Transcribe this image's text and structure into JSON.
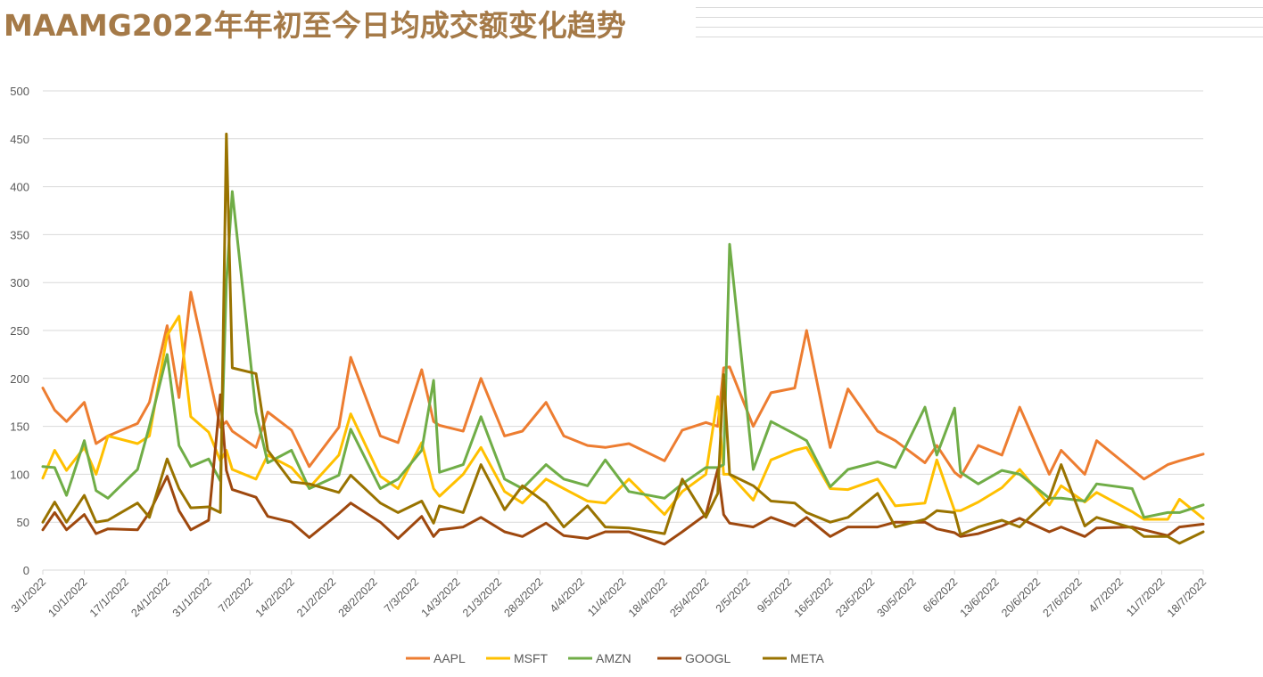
{
  "chart_data": {
    "type": "line",
    "title": "MAAMG2022年年初至今日均成交额变化趋势",
    "xlabel": "",
    "ylabel": "",
    "ylim": [
      0,
      500
    ],
    "yticks": [
      "0",
      "50",
      "100",
      "150",
      "200",
      "250",
      "300",
      "350",
      "400",
      "450",
      "500"
    ],
    "xlim": [
      "2022-01-03",
      "2022-07-18"
    ],
    "xtick_labels": [
      "3/1/2022",
      "10/1/2022",
      "17/1/2022",
      "24/1/2022",
      "31/1/2022",
      "7/2/2022",
      "14/2/2022",
      "21/2/2022",
      "28/2/2022",
      "7/3/2022",
      "14/3/2022",
      "21/3/2022",
      "28/3/2022",
      "4/4/2022",
      "11/4/2022",
      "18/4/2022",
      "25/4/2022",
      "2/5/2022",
      "9/5/2022",
      "16/5/2022",
      "23/5/2022",
      "30/5/2022",
      "6/6/2022",
      "13/6/2022",
      "20/6/2022",
      "27/6/2022",
      "4/7/2022",
      "11/7/2022",
      "18/7/2022"
    ],
    "grid": true,
    "legend_position": "bottom",
    "x": [
      "2022-01-03",
      "2022-01-05",
      "2022-01-07",
      "2022-01-10",
      "2022-01-12",
      "2022-01-14",
      "2022-01-19",
      "2022-01-21",
      "2022-01-24",
      "2022-01-26",
      "2022-01-28",
      "2022-01-31",
      "2022-02-02",
      "2022-02-03",
      "2022-02-04",
      "2022-02-08",
      "2022-02-10",
      "2022-02-14",
      "2022-02-17",
      "2022-02-22",
      "2022-02-24",
      "2022-03-01",
      "2022-03-04",
      "2022-03-08",
      "2022-03-10",
      "2022-03-11",
      "2022-03-15",
      "2022-03-18",
      "2022-03-22",
      "2022-03-25",
      "2022-03-29",
      "2022-04-01",
      "2022-04-05",
      "2022-04-08",
      "2022-04-12",
      "2022-04-18",
      "2022-04-21",
      "2022-04-25",
      "2022-04-27",
      "2022-04-28",
      "2022-04-29",
      "2022-05-03",
      "2022-05-06",
      "2022-05-10",
      "2022-05-12",
      "2022-05-16",
      "2022-05-19",
      "2022-05-24",
      "2022-05-27",
      "2022-06-01",
      "2022-06-03",
      "2022-06-06",
      "2022-06-07",
      "2022-06-10",
      "2022-06-14",
      "2022-06-17",
      "2022-06-22",
      "2022-06-24",
      "2022-06-28",
      "2022-06-30",
      "2022-07-06",
      "2022-07-08",
      "2022-07-12",
      "2022-07-14",
      "2022-07-18"
    ],
    "series": [
      {
        "name": "AAPL",
        "color": "#ED7D31",
        "values": [
          190,
          167,
          155,
          175,
          132,
          140,
          153,
          175,
          255,
          180,
          290,
          205,
          149,
          155,
          145,
          128,
          165,
          146,
          108,
          149,
          222,
          140,
          133,
          209,
          155,
          151,
          145,
          200,
          140,
          145,
          175,
          140,
          130,
          128,
          132,
          114,
          146,
          154,
          150,
          211,
          212,
          150,
          185,
          190,
          250,
          128,
          189,
          145,
          135,
          112,
          130,
          102,
          97,
          130,
          120,
          170,
          100,
          125,
          100,
          135,
          105,
          95,
          110,
          114,
          121
        ]
      },
      {
        "name": "MSFT",
        "color": "#FFC000",
        "values": [
          96,
          125,
          104,
          128,
          100,
          140,
          132,
          140,
          245,
          265,
          160,
          144,
          114,
          125,
          105,
          95,
          120,
          107,
          86,
          120,
          163,
          98,
          85,
          133,
          85,
          77,
          100,
          128,
          82,
          70,
          95,
          85,
          72,
          70,
          95,
          58,
          82,
          100,
          181,
          100,
          100,
          73,
          115,
          125,
          128,
          85,
          84,
          95,
          67,
          70,
          115,
          62,
          62,
          71,
          86,
          105,
          68,
          88,
          71,
          81,
          61,
          53,
          53,
          74,
          54
        ]
      },
      {
        "name": "AMZN",
        "color": "#70AD47",
        "values": [
          108,
          107,
          78,
          135,
          83,
          75,
          105,
          150,
          225,
          130,
          108,
          116,
          93,
          300,
          395,
          165,
          112,
          125,
          85,
          99,
          147,
          85,
          95,
          125,
          198,
          102,
          110,
          160,
          95,
          85,
          110,
          95,
          88,
          115,
          82,
          75,
          90,
          107,
          107,
          110,
          340,
          105,
          155,
          142,
          135,
          87,
          105,
          113,
          107,
          170,
          120,
          169,
          102,
          90,
          104,
          100,
          75,
          75,
          72,
          90,
          85,
          55,
          60,
          60,
          68
        ]
      },
      {
        "name": "GOOGL",
        "color": "#9E480E",
        "values": [
          42,
          60,
          42,
          58,
          38,
          43,
          42,
          60,
          98,
          62,
          42,
          52,
          183,
          104,
          84,
          76,
          56,
          50,
          34,
          59,
          70,
          50,
          33,
          56,
          35,
          42,
          45,
          55,
          40,
          35,
          49,
          36,
          33,
          40,
          40,
          27,
          40,
          58,
          105,
          58,
          49,
          45,
          55,
          46,
          55,
          35,
          45,
          45,
          50,
          50,
          43,
          39,
          35,
          38,
          46,
          54,
          40,
          45,
          35,
          44,
          45,
          42,
          36,
          45,
          48
        ]
      },
      {
        "name": "META",
        "color": "#997300",
        "values": [
          50,
          71,
          50,
          78,
          50,
          52,
          70,
          55,
          116,
          85,
          65,
          66,
          60,
          455,
          211,
          205,
          125,
          92,
          90,
          81,
          99,
          70,
          60,
          72,
          49,
          67,
          60,
          110,
          63,
          88,
          70,
          45,
          67,
          45,
          44,
          38,
          95,
          55,
          80,
          204,
          100,
          88,
          72,
          70,
          60,
          50,
          55,
          80,
          45,
          53,
          62,
          60,
          37,
          45,
          52,
          45,
          75,
          110,
          46,
          55,
          44,
          35,
          35,
          28,
          40
        ]
      }
    ]
  }
}
